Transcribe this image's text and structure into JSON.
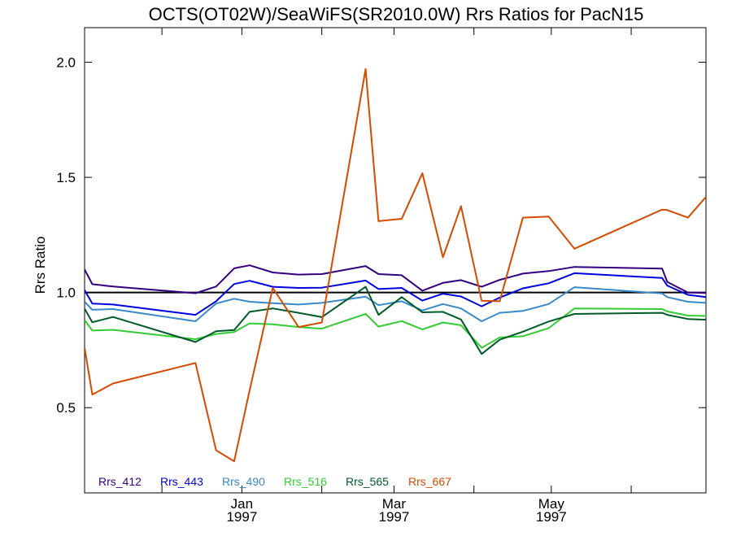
{
  "chart_data": {
    "type": "line",
    "title": "OCTS(OT02W)/SeaWiFS(SR2010.0W)  Rrs Ratios for PacN15",
    "xlabel": "",
    "ylabel": "Rrs Ratio",
    "xlim": [
      "1996-11-01",
      "1997-06-30"
    ],
    "ylim": [
      0.13,
      2.15
    ],
    "y_ticks": [
      {
        "value": 0.5,
        "label": "0.5"
      },
      {
        "value": 1.0,
        "label": "1.0"
      },
      {
        "value": 1.5,
        "label": "1.5"
      },
      {
        "value": 2.0,
        "label": "2.0"
      }
    ],
    "x_ticks": [
      {
        "date": "1996-12-01"
      },
      {
        "date": "1997-01-01",
        "label": "Jan",
        "year": "1997"
      },
      {
        "date": "1997-02-01"
      },
      {
        "date": "1997-03-01",
        "label": "Mar",
        "year": "1997"
      },
      {
        "date": "1997-04-01"
      },
      {
        "date": "1997-05-01",
        "label": "May",
        "year": "1997"
      },
      {
        "date": "1997-06-01"
      }
    ],
    "reference_line": 1.0,
    "grid": false,
    "legend_position": "bottom-left",
    "x": [
      "1996-11-01",
      "1996-11-04",
      "1996-11-12",
      "1996-12-14",
      "1996-12-22",
      "1996-12-29",
      "1997-01-04",
      "1997-01-13",
      "1997-01-23",
      "1997-02-01",
      "1997-02-18",
      "1997-02-23",
      "1997-03-04",
      "1997-03-12",
      "1997-03-20",
      "1997-03-27",
      "1997-04-04",
      "1997-04-11",
      "1997-04-20",
      "1997-04-30",
      "1997-05-10",
      "1997-06-13",
      "1997-06-15",
      "1997-06-23",
      "1997-06-30"
    ],
    "series": [
      {
        "name": "Rrs_412",
        "color": "#33007f",
        "values": [
          1.1,
          1.036,
          1.026,
          0.997,
          1.026,
          1.105,
          1.118,
          1.087,
          1.078,
          1.08,
          1.115,
          1.08,
          1.075,
          1.008,
          1.042,
          1.054,
          1.025,
          1.055,
          1.082,
          1.093,
          1.111,
          1.104,
          1.046,
          1.0,
          0.998
        ]
      },
      {
        "name": "Rrs_443",
        "color": "#0000dd",
        "values": [
          1.01,
          0.952,
          0.948,
          0.903,
          0.962,
          1.037,
          1.051,
          1.025,
          1.02,
          1.021,
          1.052,
          1.015,
          1.02,
          0.965,
          0.995,
          0.983,
          0.94,
          0.978,
          1.018,
          1.04,
          1.084,
          1.063,
          1.03,
          0.99,
          0.98
        ]
      },
      {
        "name": "Rrs_490",
        "color": "#3a89c9",
        "values": [
          0.96,
          0.925,
          0.928,
          0.875,
          0.952,
          0.973,
          0.96,
          0.954,
          0.948,
          0.955,
          0.982,
          0.945,
          0.962,
          0.922,
          0.95,
          0.931,
          0.875,
          0.912,
          0.92,
          0.95,
          1.023,
          0.996,
          0.98,
          0.96,
          0.955
        ]
      },
      {
        "name": "Rrs_516",
        "color": "#33cc33",
        "values": [
          0.88,
          0.835,
          0.838,
          0.797,
          0.82,
          0.828,
          0.866,
          0.862,
          0.85,
          0.843,
          0.907,
          0.852,
          0.876,
          0.84,
          0.87,
          0.858,
          0.76,
          0.805,
          0.81,
          0.845,
          0.931,
          0.928,
          0.918,
          0.9,
          0.898
        ]
      },
      {
        "name": "Rrs_565",
        "color": "#005a28",
        "values": [
          0.93,
          0.871,
          0.894,
          0.785,
          0.832,
          0.837,
          0.916,
          0.931,
          0.912,
          0.893,
          1.025,
          0.903,
          0.98,
          0.914,
          0.916,
          0.883,
          0.733,
          0.795,
          0.83,
          0.874,
          0.907,
          0.912,
          0.903,
          0.885,
          0.882
        ]
      },
      {
        "name": "Rrs_667",
        "color": "#d44b00",
        "values": [
          0.76,
          0.557,
          0.605,
          0.694,
          0.315,
          0.267,
          0.575,
          1.02,
          0.85,
          0.87,
          1.97,
          1.31,
          1.32,
          1.518,
          1.153,
          1.375,
          0.964,
          0.962,
          1.325,
          1.33,
          1.19,
          1.36,
          1.358,
          1.325,
          1.415
        ]
      }
    ]
  }
}
